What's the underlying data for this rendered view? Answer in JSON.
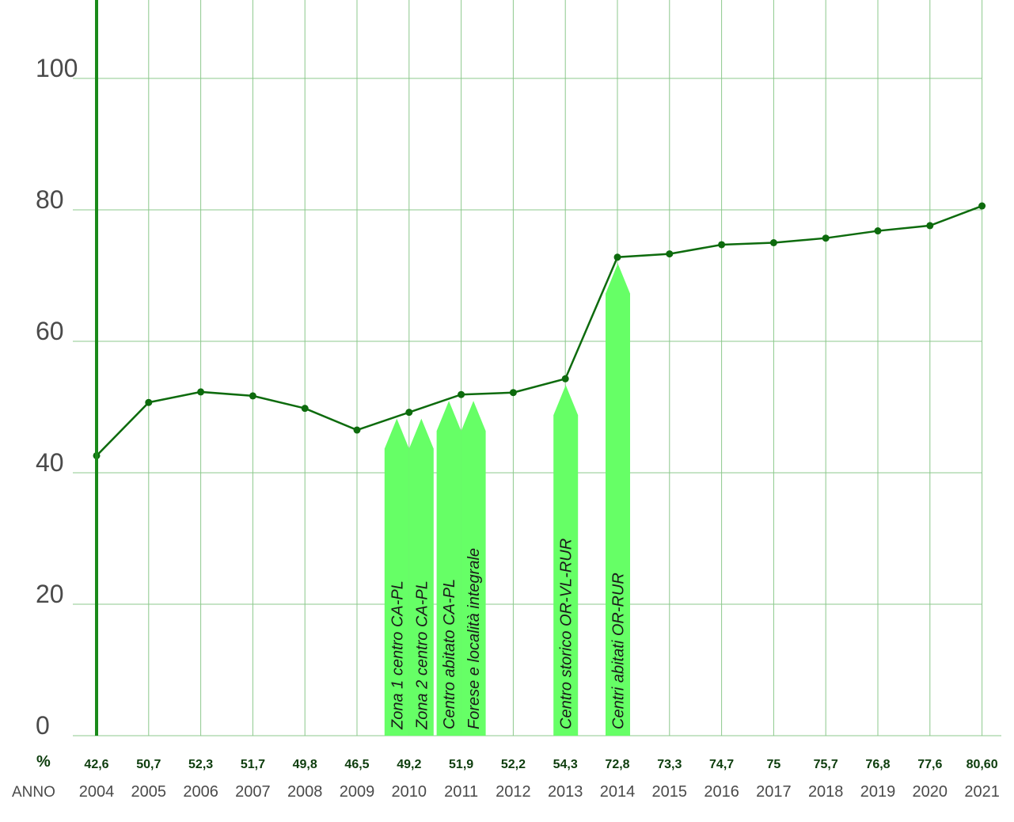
{
  "chart_data": {
    "type": "line",
    "title": "",
    "xlabel": "ANNO",
    "ylabel": "%",
    "ylim": [
      0,
      110
    ],
    "yticks": [
      0,
      20,
      40,
      60,
      80,
      100
    ],
    "grid": true,
    "x": [
      "2004",
      "2005",
      "2006",
      "2007",
      "2008",
      "2009",
      "2010",
      "2011",
      "2012",
      "2013",
      "2014",
      "2015",
      "2016",
      "2017",
      "2018",
      "2019",
      "2020",
      "2021"
    ],
    "series": [
      {
        "values": [
          42.6,
          50.7,
          52.3,
          51.7,
          49.8,
          46.5,
          49.2,
          51.9,
          52.2,
          54.3,
          72.8,
          73.3,
          74.7,
          75,
          75.7,
          76.8,
          77.6,
          80.6
        ],
        "labels": [
          "42,6",
          "50,7",
          "52,3",
          "51,7",
          "49,8",
          "46,5",
          "49,2",
          "51,9",
          "52,2",
          "54,3",
          "72,8",
          "73,3",
          "74,7",
          "75",
          "75,7",
          "76,8",
          "77,6",
          "80,60"
        ]
      }
    ],
    "row_headers": {
      "percent": "%",
      "year": "ANNO"
    },
    "annotations": [
      {
        "text": "Zona 1 centro CA-PL",
        "year": "2010",
        "side": "left",
        "top_value": 49.2
      },
      {
        "text": "Zona 2 centro  CA-PL",
        "year": "2010",
        "side": "right",
        "top_value": 49.2
      },
      {
        "text": "Centro  abitato CA-PL",
        "year": "2011",
        "side": "left",
        "top_value": 51.9
      },
      {
        "text": "Forese e località integrale",
        "year": "2011",
        "side": "right",
        "top_value": 51.9
      },
      {
        "text": "Centro storico OR-VL-RUR",
        "year": "2013",
        "side": "center",
        "top_value": 54.3
      },
      {
        "text": "Centri  abitati OR-RUR",
        "year": "2014",
        "side": "center",
        "top_value": 72.8
      }
    ],
    "colors": {
      "line": "#0d6b0d",
      "axis": "#1a8a1a",
      "grid": "#8cc88c",
      "arrow": "#66ff66",
      "value_label": "#0d3d0d"
    }
  }
}
